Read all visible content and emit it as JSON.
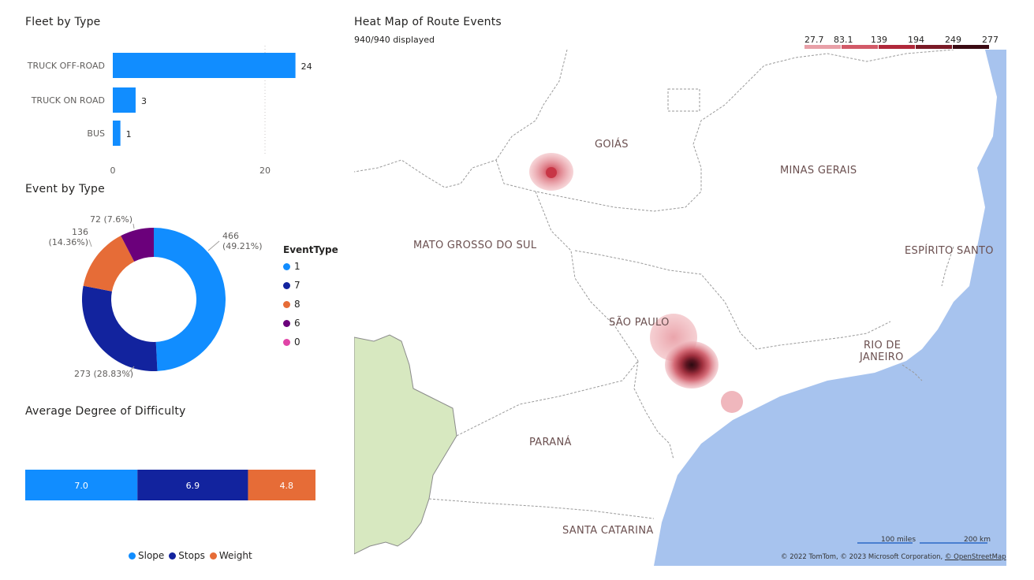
{
  "fleet": {
    "title": "Fleet by Type",
    "chart_data": {
      "type": "bar",
      "orientation": "horizontal",
      "categories": [
        "TRUCK OFF-ROAD",
        "TRUCK ON ROAD",
        "BUS"
      ],
      "values": [
        24,
        3,
        1
      ],
      "xlim": [
        0,
        27
      ],
      "xticks": [
        0,
        20
      ],
      "color": "#118DFF"
    }
  },
  "events": {
    "title": "Event by Type",
    "legend_title": "EventType",
    "chart_data": {
      "type": "pie",
      "donut": true,
      "slices": [
        {
          "name": "1",
          "value": 466,
          "label": "466",
          "label2": "(49.21%)",
          "color": "#118DFF"
        },
        {
          "name": "7",
          "value": 273,
          "label": "273 (28.83%)",
          "label2": "",
          "color": "#12239E"
        },
        {
          "name": "8",
          "value": 136,
          "label": "136",
          "label2": "(14.36%)",
          "color": "#E66C37"
        },
        {
          "name": "6",
          "value": 72,
          "label": "72 (7.6%)",
          "label2": "",
          "color": "#6B007B"
        },
        {
          "name": "0",
          "value": 0,
          "label": "",
          "label2": "",
          "color": "#E044A7"
        }
      ]
    }
  },
  "difficulty": {
    "title": "Average Degree of Difficulty",
    "chart_data": {
      "type": "bar",
      "stacked": true,
      "orientation": "horizontal",
      "series": [
        {
          "name": "Slope",
          "value": 7.0,
          "label": "7.0",
          "color": "#118DFF"
        },
        {
          "name": "Stops",
          "value": 6.9,
          "label": "6.9",
          "color": "#12239E"
        },
        {
          "name": "Weight",
          "value": 4.8,
          "label": "4.8",
          "color": "#E66C37"
        }
      ]
    }
  },
  "heatmap": {
    "title": "Heat Map of Route Events",
    "subtitle": "940/940 displayed",
    "scale": [
      "27.7",
      "83.1",
      "139",
      "194",
      "249",
      "277"
    ],
    "scale_colors": [
      "#E8A0A8",
      "#D25A68",
      "#B0283A",
      "#7A1A26",
      "#3A0A12"
    ],
    "regions": [
      "GOIÁS",
      "MINAS GERAIS",
      "MATO GROSSO DO SUL",
      "ESPÍRITO SANTO",
      "SÃO PAULO",
      "RIO DE",
      "JANEIRO",
      "PARANÁ",
      "SANTA CATARINA"
    ],
    "scalebar": {
      "miles": "100 miles",
      "km": "200 km"
    },
    "attribution": "© 2022 TomTom, © 2023 Microsoft Corporation, ",
    "attribution_link": "© OpenStreetMap"
  }
}
